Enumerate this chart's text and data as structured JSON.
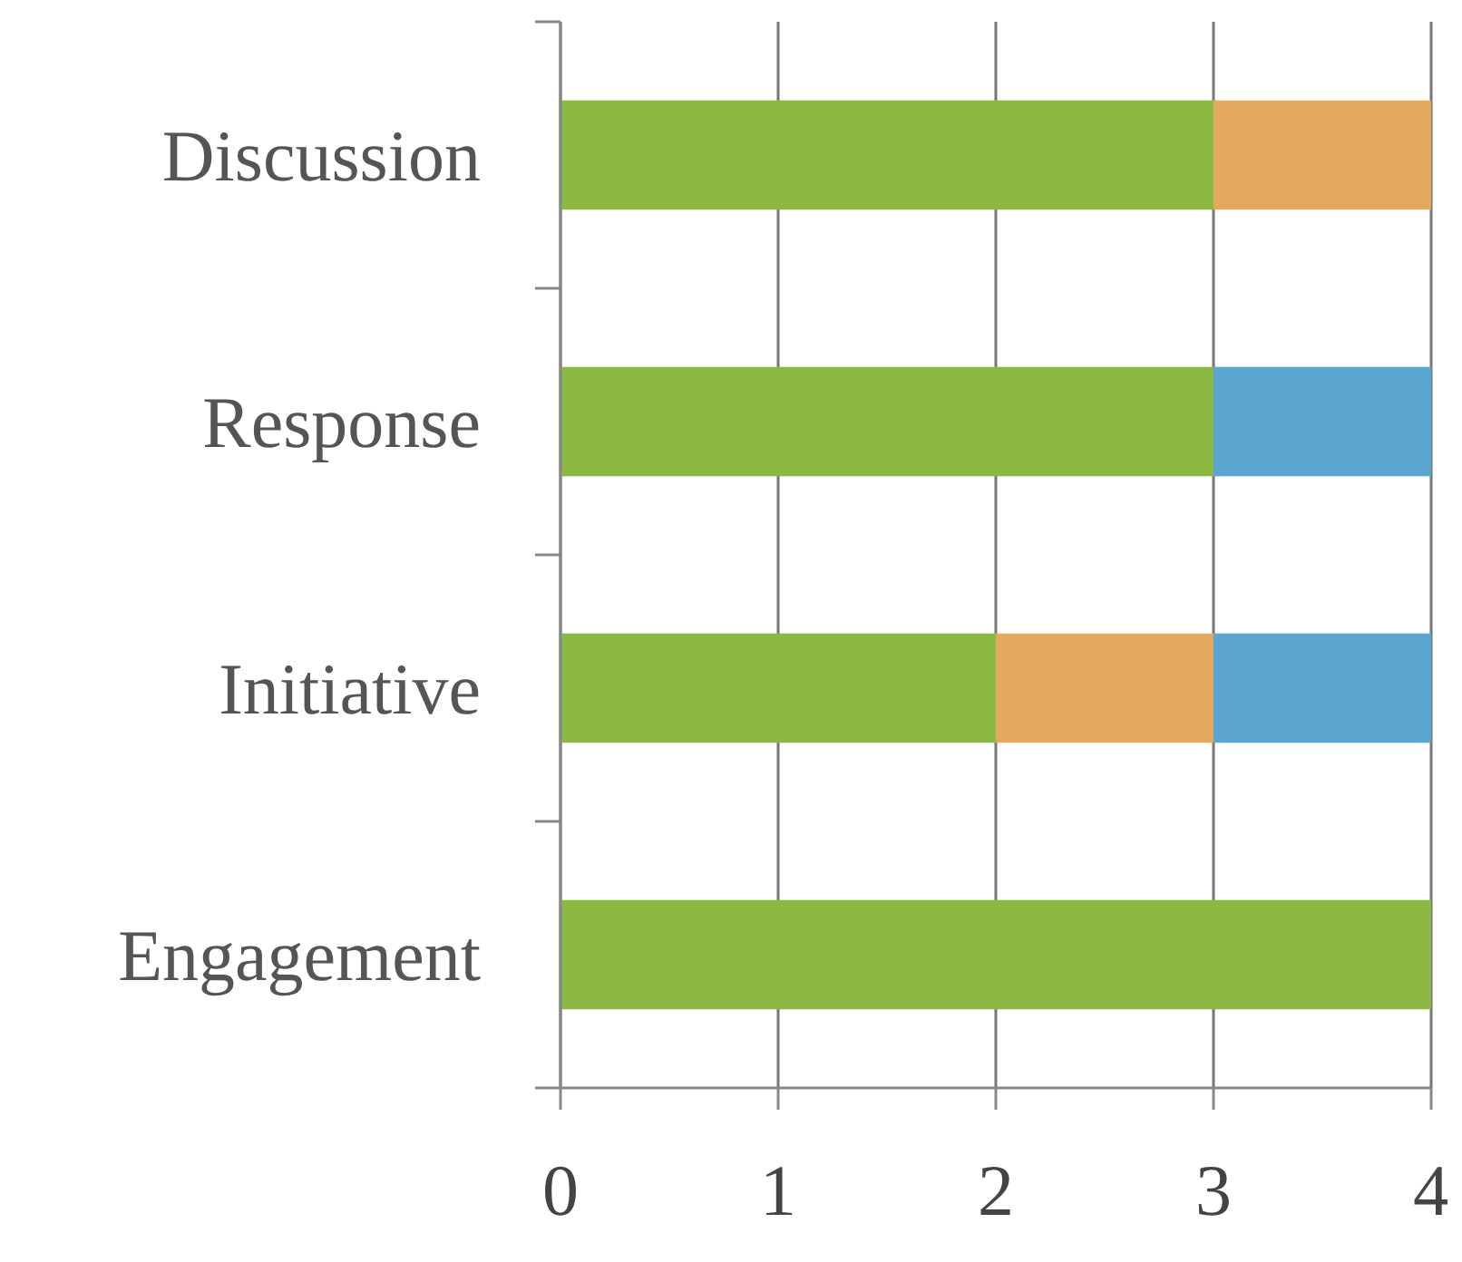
{
  "chart_data": {
    "type": "bar",
    "orientation": "horizontal",
    "stacked": true,
    "categories": [
      "Discussion",
      "Response",
      "Initiative",
      "Engagement"
    ],
    "series": [
      {
        "color": "#8cb844",
        "values": [
          3,
          3,
          2,
          4
        ]
      },
      {
        "color": "#e3aa5e",
        "values": [
          1,
          null,
          1,
          null
        ]
      },
      {
        "color": "#5ba6cf",
        "values": [
          null,
          1,
          1,
          null
        ]
      }
    ],
    "xlim": [
      0,
      4
    ],
    "xticks": [
      0,
      1,
      2,
      3,
      4
    ],
    "grid": "x"
  }
}
